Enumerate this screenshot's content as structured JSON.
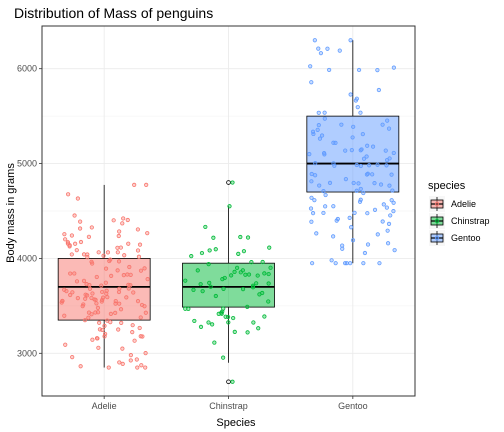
{
  "chart_data": {
    "type": "boxplot",
    "title": "Distribution of Mass of penguins",
    "xlabel": "Species",
    "ylabel": "Body mass in grams",
    "categories": [
      "Adelie",
      "Chinstrap",
      "Gentoo"
    ],
    "ylim": [
      2550,
      6450
    ],
    "yticks": [
      3000,
      4000,
      5000,
      6000
    ],
    "grid": true,
    "legend": {
      "title": "species",
      "placement": "right",
      "entries": [
        "Adelie",
        "Chinstrap",
        "Gentoo"
      ]
    },
    "colors": {
      "Adelie": "#F8766D",
      "Chinstrap": "#00BA38",
      "Gentoo": "#619CFF"
    },
    "series": [
      {
        "name": "Adelie",
        "min": 2850,
        "q1": 3350,
        "median": 3700,
        "q3": 4000,
        "max": 4775,
        "n": 152
      },
      {
        "name": "Chinstrap",
        "min": 2900,
        "q1": 3487,
        "median": 3700,
        "q3": 3950,
        "max": 4550,
        "n": 68,
        "outliers": [
          2700,
          4800
        ]
      },
      {
        "name": "Gentoo",
        "min": 3950,
        "q1": 4700,
        "median": 5000,
        "q3": 5500,
        "max": 6300,
        "n": 124
      }
    ]
  }
}
